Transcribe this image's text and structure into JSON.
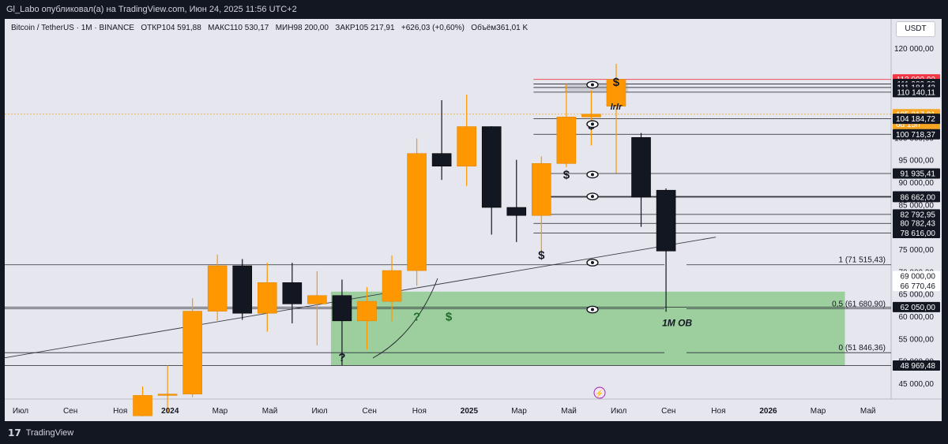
{
  "header": {
    "title": "Gl_Labo опубликовал(а) на TradingView.com, Июн 24, 2025 11:56 UTC+2"
  },
  "legend": {
    "symbol": "Bitcoin / TetherUS · 1М · BINANCE",
    "open": "ОТКР104 591,88",
    "high": "МАКС110 530,17",
    "low": "МИН98 200,00",
    "close": "ЗАКР105 217,91",
    "change": "+626,03 (+0,60%)",
    "volume": "Объём361,01 K"
  },
  "currency_button": "USDT",
  "footer": {
    "brand": "TradingView"
  },
  "colors": {
    "up": "#ff9800",
    "down": "#131722",
    "zone": "#8fc98f",
    "current": "#f6a623",
    "red": "#f23645"
  },
  "chart_data": {
    "type": "candlestick",
    "title": "Bitcoin / TetherUS · 1М · BINANCE",
    "ylim": [
      43000,
      122000
    ],
    "y_ticks": [
      45000,
      50000,
      55000,
      60000,
      65000,
      70000,
      75000,
      80000,
      85000,
      90000,
      95000,
      100000,
      120000
    ],
    "y_tick_labels": [
      "45 000,00",
      "50 000,00",
      "55 000,00",
      "60 000,00",
      "65 000,00",
      "70 000,00",
      "75 000,00",
      "80 000,00",
      "85 000,00",
      "90 000,00",
      "95 000,00",
      "100 000,00",
      "120 000,00"
    ],
    "x_labels": [
      "Июл",
      "Сен",
      "Ноя",
      "2024",
      "Мар",
      "Май",
      "Июл",
      "Сен",
      "Ноя",
      "2025",
      "Мар",
      "Май",
      "Июл",
      "Сен",
      "Ноя",
      "2026",
      "Мар",
      "Май"
    ],
    "x_label_bold": [
      "2024",
      "2025",
      "2026"
    ],
    "candles": [
      {
        "m": "2023-12",
        "o": 37720,
        "h": 44300,
        "l": 37600,
        "c": 42280
      },
      {
        "m": "2024-01",
        "o": 42280,
        "h": 48970,
        "l": 38550,
        "c": 42580
      },
      {
        "m": "2024-02",
        "o": 42580,
        "h": 64000,
        "l": 41880,
        "c": 61130
      },
      {
        "m": "2024-03",
        "o": 61130,
        "h": 73780,
        "l": 59000,
        "c": 71290
      },
      {
        "m": "2024-04",
        "o": 71290,
        "h": 72800,
        "l": 59190,
        "c": 60670
      },
      {
        "m": "2024-05",
        "o": 60670,
        "h": 71980,
        "l": 56550,
        "c": 67520
      },
      {
        "m": "2024-06",
        "o": 67520,
        "h": 71950,
        "l": 58400,
        "c": 62770
      },
      {
        "m": "2024-07",
        "o": 62770,
        "h": 70080,
        "l": 53490,
        "c": 64630
      },
      {
        "m": "2024-08",
        "o": 64630,
        "h": 68200,
        "l": 49000,
        "c": 58970
      },
      {
        "m": "2024-09",
        "o": 58970,
        "h": 66500,
        "l": 52550,
        "c": 63330
      },
      {
        "m": "2024-10",
        "o": 63330,
        "h": 73620,
        "l": 58870,
        "c": 70220
      },
      {
        "m": "2024-11",
        "o": 70220,
        "h": 99800,
        "l": 66830,
        "c": 96410
      },
      {
        "m": "2024-12",
        "o": 96410,
        "h": 108350,
        "l": 90500,
        "c": 93580
      },
      {
        "m": "2025-01",
        "o": 93580,
        "h": 109590,
        "l": 89160,
        "c": 102430
      },
      {
        "m": "2025-02",
        "o": 102430,
        "h": 102500,
        "l": 78260,
        "c": 84350
      },
      {
        "m": "2025-03",
        "o": 84350,
        "h": 95000,
        "l": 76600,
        "c": 82550
      },
      {
        "m": "2025-04",
        "o": 82550,
        "h": 95760,
        "l": 74600,
        "c": 94180
      },
      {
        "m": "2025-05",
        "o": 94180,
        "h": 111980,
        "l": 93350,
        "c": 104590
      },
      {
        "m": "2025-06",
        "o": 104591.88,
        "h": 110530.17,
        "l": 98200,
        "c": 105217.91
      },
      {
        "m": "2025-07",
        "o": 107000,
        "h": 116500,
        "l": 92000,
        "c": 113000
      },
      {
        "m": "2025-08",
        "o": 100000,
        "h": 101000,
        "l": 80000,
        "c": 86662
      },
      {
        "m": "2025-09",
        "o": 88200,
        "h": 88600,
        "l": 61000,
        "c": 74600
      }
    ],
    "price_levels": [
      {
        "label": "113 000,00",
        "value": 113000,
        "style": "red"
      },
      {
        "label": "111 980,00",
        "value": 111980,
        "style": "dark"
      },
      {
        "label": "111 184,43",
        "value": 111184.43,
        "style": "dark"
      },
      {
        "label": "110 140,11",
        "value": 110140.11,
        "style": "dark"
      },
      {
        "label": "105 217,91",
        "sub": "6d 15h",
        "value": 105217.91,
        "style": "current"
      },
      {
        "label": "104 184,72",
        "value": 104184.72,
        "style": "dark"
      },
      {
        "label": "100 718,37",
        "value": 100718.37,
        "style": "dark"
      },
      {
        "label": "91 935,41",
        "value": 91935.41,
        "style": "dark"
      },
      {
        "label": "86 818,18",
        "value": 86818.18,
        "style": "dark"
      },
      {
        "label": "86 662,00",
        "value": 86662,
        "style": "dark"
      },
      {
        "label": "82 792,95",
        "value": 82792.95,
        "style": "dark"
      },
      {
        "label": "80 782,43",
        "value": 80782.43,
        "style": "dark"
      },
      {
        "label": "78 616,00",
        "value": 78616,
        "style": "dark"
      },
      {
        "label": "69 000,00",
        "value": 69000,
        "style": "light"
      },
      {
        "label": "66 770,46",
        "value": 66770.46,
        "style": "light"
      },
      {
        "label": "62 050,00",
        "value": 62050,
        "style": "dark"
      },
      {
        "label": "48 969,48",
        "value": 48969.48,
        "style": "dark"
      }
    ],
    "fib": [
      {
        "label": "1 (71 515,43)",
        "value": 71515.43
      },
      {
        "label": "0,5 (61 680,90)",
        "value": 61680.9
      },
      {
        "label": "0 (51 846,36)",
        "value": 51846.36
      }
    ],
    "zone": {
      "from": "2024-08",
      "to": "2026-05",
      "low": 48969.48,
      "high": 65500
    },
    "annotations": [
      {
        "text": "1M OB",
        "m": "2025-09",
        "value": 57800
      },
      {
        "text": "?",
        "m": "2024-11",
        "value": 59000
      },
      {
        "text": "?",
        "m": "2024-08",
        "value": 49900
      },
      {
        "text": "$",
        "m": "2024-12",
        "value": 59000
      },
      {
        "text": "$",
        "m": "2025-04",
        "value": 72800
      },
      {
        "text": "$",
        "m": "2025-05",
        "value": 90800
      },
      {
        "text": "$",
        "m": "2025-06",
        "value": 101800
      },
      {
        "text": "$",
        "m": "2025-07",
        "value": 111500
      },
      {
        "text": "lrlr",
        "m": "2025-07",
        "value": 106200
      }
    ],
    "eye_markers": [
      {
        "m": "2025-07",
        "value": 111800
      },
      {
        "m": "2025-07",
        "value": 103000
      },
      {
        "m": "2025-07",
        "value": 91700
      },
      {
        "m": "2025-07",
        "value": 86800
      },
      {
        "m": "2025-07",
        "value": 72000
      },
      {
        "m": "2025-07",
        "value": 61500
      }
    ],
    "grid": false,
    "legend": "top-left"
  }
}
